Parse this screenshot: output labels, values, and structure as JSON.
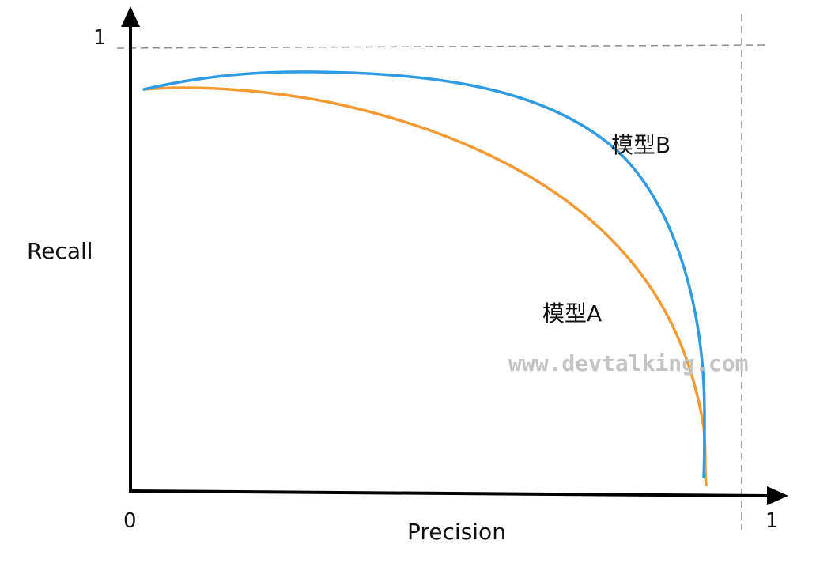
{
  "axes": {
    "x_label": "Precision",
    "y_label": "Recall",
    "origin_label": "0",
    "x_max_label": "1",
    "y_max_label": "1"
  },
  "curves": {
    "model_a": {
      "label": "模型A",
      "color": "#f39a33"
    },
    "model_b": {
      "label": "模型B",
      "color": "#2f9be3"
    }
  },
  "watermark": "www.devtalking.com",
  "colors": {
    "axis": "#000000",
    "reference_line": "#8c8c8c"
  }
}
